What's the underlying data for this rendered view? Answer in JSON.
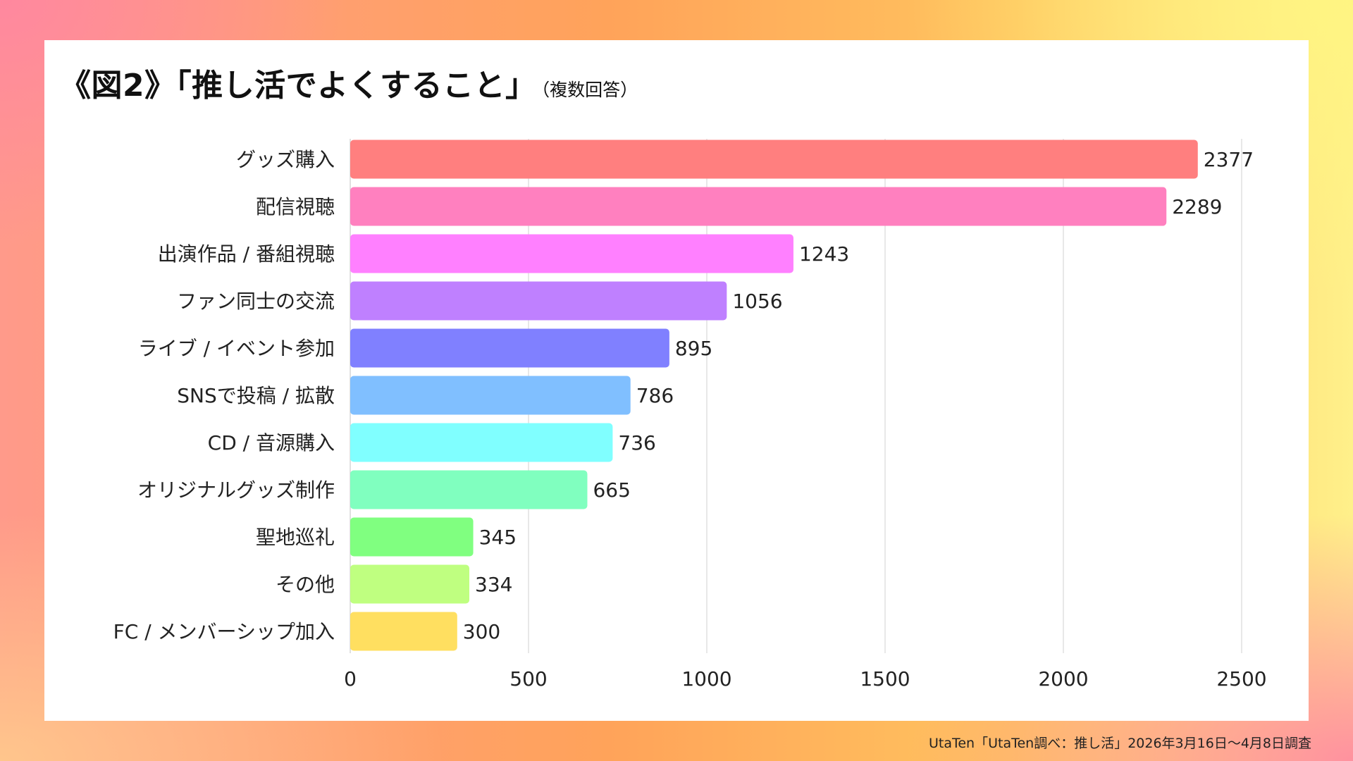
{
  "title": "《図2》「推し活でよくすること」",
  "subtitle": "（複数回答）",
  "source": "UtaTen「UtaTen調べ：推し活」2026年3月16日〜4月8日調査",
  "chart_data": {
    "type": "bar",
    "orientation": "horizontal",
    "title": "《図2》「推し活でよくすること」",
    "subtitle": "（複数回答）",
    "categories": [
      "グッズ購入",
      "配信視聴",
      "出演作品 / 番組視聴",
      "ファン同士の交流",
      "ライブ / イベント参加",
      "SNSで投稿 / 拡散",
      "CD / 音源購入",
      "オリジナルグッズ制作",
      "聖地巡礼",
      "その他",
      "FC / メンバーシップ加入"
    ],
    "values": [
      2377,
      2289,
      1243,
      1056,
      895,
      786,
      736,
      665,
      345,
      334,
      300
    ],
    "colors": [
      "#ff7f7f",
      "#ff80bf",
      "#ff80ff",
      "#bf80ff",
      "#8080ff",
      "#80bfff",
      "#80ffff",
      "#80ffbf",
      "#80ff80",
      "#bfff80",
      "#ffdf60"
    ],
    "xlim": [
      0,
      2500
    ],
    "xticks": [
      0,
      500,
      1000,
      1500,
      2000,
      2500
    ],
    "xlabel": "",
    "ylabel": "",
    "grid": true,
    "data_labels": true
  }
}
